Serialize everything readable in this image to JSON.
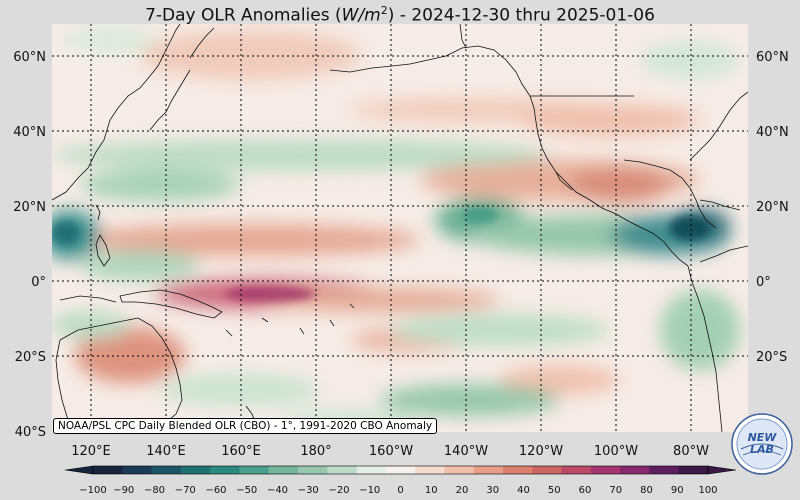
{
  "title": {
    "prefix": "7-Day OLR Anomalies (",
    "unit_italic": "W/m",
    "unit_sup": "2",
    "suffix": ") - 2024-12-30 thru 2025-01-06"
  },
  "map": {
    "lat_labels": [
      "60°N",
      "40°N",
      "20°N",
      "0°",
      "20°S",
      "40°S"
    ],
    "lon_labels": [
      "120°E",
      "140°E",
      "160°E",
      "180°",
      "160°W",
      "140°W",
      "120°W",
      "100°W",
      "80°W"
    ],
    "colors": {
      "negative_strong": "#0a4a57",
      "negative_mid": "#1f8a7a",
      "negative_light": "#9fd0b2",
      "neutral": "#f7f1ee",
      "positive_light": "#f2c1ae",
      "positive_mid": "#d77966",
      "positive_strong": "#b4356a"
    }
  },
  "source_note": "NOAA/PSL CPC Daily Blended OLR (CBO) - 1°, 1991-2020 CBO Anomaly",
  "colorbar": {
    "ticks": [
      "−100",
      "−90",
      "−80",
      "−70",
      "−60",
      "−50",
      "−40",
      "−30",
      "−20",
      "−10",
      "0",
      "10",
      "20",
      "30",
      "40",
      "50",
      "60",
      "70",
      "80",
      "90",
      "100"
    ],
    "colors": [
      "#16243e",
      "#1b3a57",
      "#1e5468",
      "#1f6f73",
      "#2a8a7e",
      "#4aa08c",
      "#72b49c",
      "#98c8ae",
      "#bddbc6",
      "#e3eee4",
      "#f7f1ee",
      "#f6dccf",
      "#f1c0aa",
      "#e89f88",
      "#dc7f6c",
      "#cd6561",
      "#bb4b66",
      "#a6356f",
      "#852a6c",
      "#5e1f5e",
      "#3a1744"
    ]
  },
  "logo": {
    "line1": "NEW",
    "line2": "LAB"
  }
}
